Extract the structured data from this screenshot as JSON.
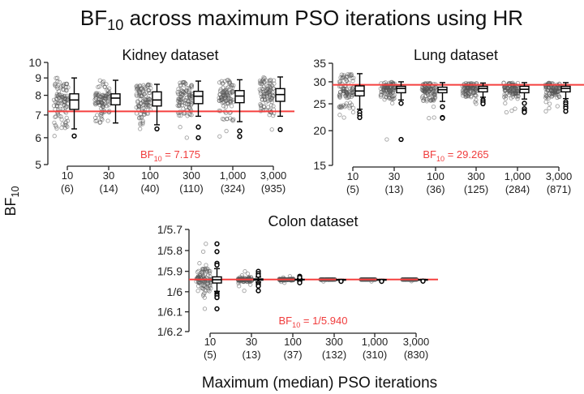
{
  "figure": {
    "title": {
      "main": "BF",
      "sub": "10",
      "rest": " across maximum PSO iterations using HR"
    },
    "ylabel": {
      "main": "BF",
      "sub": "10"
    },
    "xlabel": "Maximum (median) PSO iterations",
    "colors": {
      "reference_line": "#f5403f",
      "reference_text": "#f03c3c",
      "box": "#000000",
      "jitter_point": "#555555",
      "background": "#ffffff"
    }
  },
  "chart_data": [
    {
      "id": "kidney",
      "type": "scatter",
      "overlay": "boxplot",
      "title": "Kidney dataset",
      "yscale": "log",
      "ylim": [
        5,
        10
      ],
      "yticks": [
        5,
        6,
        7,
        8,
        9,
        10
      ],
      "ytick_labels": [
        "5",
        "6",
        "7",
        "8",
        "9",
        "10"
      ],
      "categories": [
        "10",
        "30",
        "100",
        "300",
        "1,000",
        "3,000"
      ],
      "category_medians": [
        "(6)",
        "(14)",
        "(40)",
        "(110)",
        "(324)",
        "(935)"
      ],
      "reference": {
        "value": 7.175,
        "label": {
          "prefix": "BF",
          "sub": "10",
          "rest": " = 7.175"
        }
      },
      "boxes": [
        {
          "whisker_low": 6.37,
          "q1": 7.27,
          "median": 7.75,
          "q3": 8.08,
          "whisker_high": 9.0,
          "outliers": [
            6.07
          ]
        },
        {
          "whisker_low": 6.63,
          "q1": 7.5,
          "median": 7.85,
          "q3": 8.08,
          "whisker_high": 8.86,
          "outliers": []
        },
        {
          "whisker_low": 6.55,
          "q1": 7.44,
          "median": 7.75,
          "q3": 8.19,
          "whisker_high": 8.62,
          "outliers": [
            6.37
          ]
        },
        {
          "whisker_low": 6.94,
          "q1": 7.56,
          "median": 7.95,
          "q3": 8.22,
          "whisker_high": 8.81,
          "outliers": [
            6.45,
            6.0
          ]
        },
        {
          "whisker_low": 6.69,
          "q1": 7.61,
          "median": 7.96,
          "q3": 8.26,
          "whisker_high": 8.89,
          "outliers": [
            6.28,
            6.05
          ]
        },
        {
          "whisker_low": 6.94,
          "q1": 7.68,
          "median": 8.04,
          "q3": 8.37,
          "whisker_high": 9.06,
          "outliers": [
            6.34
          ]
        }
      ]
    },
    {
      "id": "lung",
      "type": "scatter",
      "overlay": "boxplot",
      "title": "Lung dataset",
      "yscale": "log",
      "ylim": [
        15,
        35
      ],
      "yticks": [
        15,
        20,
        25,
        30,
        35
      ],
      "ytick_labels": [
        "15",
        "20",
        "25",
        "30",
        "35"
      ],
      "categories": [
        "10",
        "30",
        "100",
        "300",
        "1,000",
        "3,000"
      ],
      "category_medians": [
        "(5)",
        "(13)",
        "(36)",
        "(125)",
        "(284)",
        "(871)"
      ],
      "reference": {
        "value": 29.265,
        "label": {
          "prefix": "BF",
          "sub": "10",
          "rest": " = 29.265"
        }
      },
      "boxes": [
        {
          "whisker_low": 23.9,
          "q1": 26.7,
          "median": 27.8,
          "q3": 29.0,
          "whisker_high": 32.1,
          "outliers": [
            23.3,
            22.8,
            22.3
          ]
        },
        {
          "whisker_low": 25.8,
          "q1": 27.4,
          "median": 28.4,
          "q3": 28.9,
          "whisker_high": 30.0,
          "outliers": [
            25.1,
            18.6
          ]
        },
        {
          "whisker_low": 25.5,
          "q1": 27.4,
          "median": 28.1,
          "q3": 28.7,
          "whisker_high": 29.8,
          "outliers": [
            24.4,
            22.3,
            22.2
          ]
        },
        {
          "whisker_low": 26.4,
          "q1": 27.6,
          "median": 28.4,
          "q3": 28.9,
          "whisker_high": 29.7,
          "outliers": [
            25.8,
            25.4,
            25.0
          ]
        },
        {
          "whisker_low": 26.0,
          "q1": 27.4,
          "median": 28.2,
          "q3": 28.9,
          "whisker_high": 29.8,
          "outliers": [
            25.1,
            24.0,
            23.6,
            23.3
          ]
        },
        {
          "whisker_low": 26.1,
          "q1": 27.6,
          "median": 28.4,
          "q3": 28.9,
          "whisker_high": 29.8,
          "outliers": [
            25.4,
            25.0,
            24.5,
            24.1,
            23.5
          ]
        }
      ]
    },
    {
      "id": "colon",
      "type": "scatter",
      "overlay": "boxplot",
      "title": "Colon dataset",
      "yscale": "log_reciprocal",
      "value_note": "values are denominators d where BF10 = 1/d",
      "ylim": [
        5.7,
        6.2
      ],
      "yticks": [
        5.7,
        5.8,
        5.9,
        6.0,
        6.1,
        6.2
      ],
      "ytick_labels": [
        "1/5.7",
        "1/5.8",
        "1/5.9",
        "1/6",
        "1/6.1",
        "1/6.2"
      ],
      "categories": [
        "10",
        "30",
        "100",
        "300",
        "1,000",
        "3,000"
      ],
      "category_medians": [
        "(5)",
        "(13)",
        "(37)",
        "(132)",
        "(310)",
        "(830)"
      ],
      "reference": {
        "value": 5.94,
        "label": {
          "prefix": "BF",
          "sub": "10",
          "rest": " =  1/5.940"
        }
      },
      "boxes": [
        {
          "whisker_low": 5.887,
          "q1": 5.927,
          "median": 5.941,
          "q3": 5.957,
          "whisker_high": 5.998,
          "outliers": [
            5.768,
            5.805,
            5.861,
            5.87,
            6.006,
            6.012,
            6.019,
            6.029,
            6.085
          ]
        },
        {
          "whisker_low": 5.928,
          "q1": 5.937,
          "median": 5.94,
          "q3": 5.943,
          "whisker_high": 5.952,
          "outliers": [
            5.9,
            5.911,
            5.92,
            5.958,
            5.965,
            5.972,
            5.995
          ]
        },
        {
          "whisker_low": 5.936,
          "q1": 5.939,
          "median": 5.94,
          "q3": 5.941,
          "whisker_high": 5.944,
          "outliers": [
            5.924,
            5.93,
            5.951,
            5.956
          ]
        },
        {
          "whisker_low": 5.939,
          "q1": 5.94,
          "median": 5.94,
          "q3": 5.94,
          "whisker_high": 5.941,
          "outliers": [
            5.949
          ]
        },
        {
          "whisker_low": 5.939,
          "q1": 5.94,
          "median": 5.94,
          "q3": 5.94,
          "whisker_high": 5.941,
          "outliers": [
            5.949
          ]
        },
        {
          "whisker_low": 5.939,
          "q1": 5.94,
          "median": 5.94,
          "q3": 5.94,
          "whisker_high": 5.941,
          "outliers": [
            5.948
          ]
        }
      ]
    }
  ]
}
